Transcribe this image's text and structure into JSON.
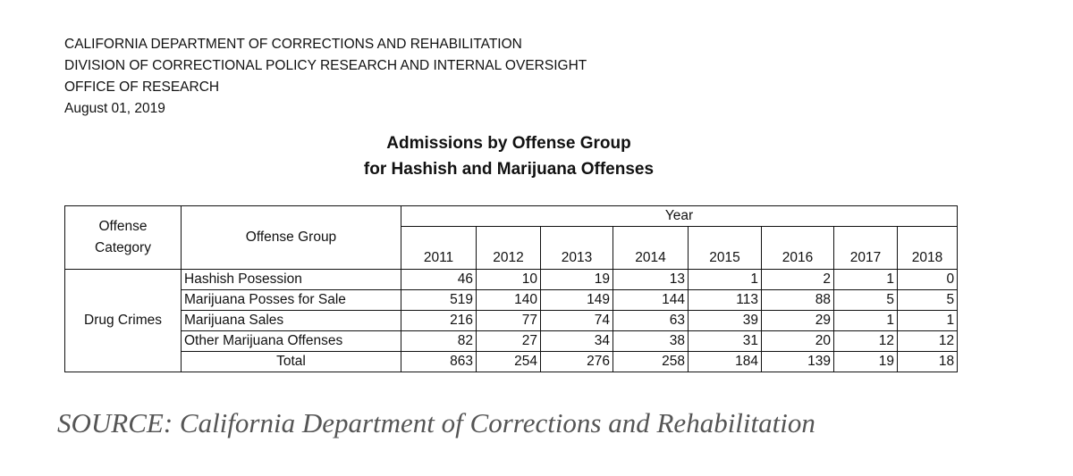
{
  "header": {
    "line1": "CALIFORNIA DEPARTMENT OF CORRECTIONS AND REHABILITATION",
    "line2": "DIVISION OF CORRECTIONAL POLICY RESEARCH AND INTERNAL OVERSIGHT",
    "line3": "OFFICE OF RESEARCH",
    "date": "August 01, 2019"
  },
  "title": {
    "line1": "Admissions by Offense Group",
    "line2": "for Hashish and Marijuana Offenses"
  },
  "table": {
    "col_category": "Offense Category",
    "col_category_l1": "Offense",
    "col_category_l2": "Category",
    "col_group": "Offense Group",
    "year_header": "Year",
    "years": [
      "2011",
      "2012",
      "2013",
      "2014",
      "2015",
      "2016",
      "2017",
      "2018"
    ],
    "category": "Drug Crimes",
    "rows": [
      {
        "group": "Hashish Posession",
        "values": [
          "46",
          "10",
          "19",
          "13",
          "1",
          "2",
          "1",
          "0"
        ]
      },
      {
        "group": "Marijuana Posses for Sale",
        "values": [
          "519",
          "140",
          "149",
          "144",
          "113",
          "88",
          "5",
          "5"
        ]
      },
      {
        "group": "Marijuana Sales",
        "values": [
          "216",
          "77",
          "74",
          "63",
          "39",
          "29",
          "1",
          "1"
        ]
      },
      {
        "group": "Other Marijuana Offenses",
        "values": [
          "82",
          "27",
          "34",
          "38",
          "31",
          "20",
          "12",
          "12"
        ]
      }
    ],
    "total": {
      "label": "Total",
      "values": [
        "863",
        "254",
        "276",
        "258",
        "184",
        "139",
        "19",
        "18"
      ]
    }
  },
  "source": "SOURCE: California Department of Corrections and Rehabilitation"
}
